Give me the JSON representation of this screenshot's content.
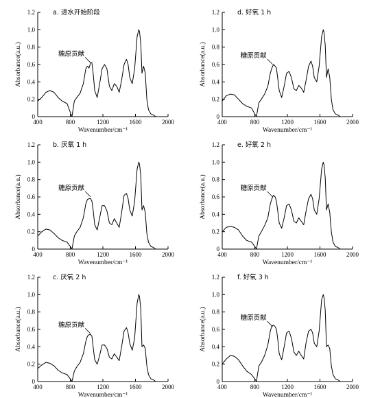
{
  "chart_data": [
    {
      "type": "line",
      "title": "a. 进水开始阶段",
      "xlabel": "Wavenumber/cm⁻¹",
      "ylabel": "Absorbance(a.u.)",
      "xlim": [
        400,
        2000
      ],
      "ylim": [
        0,
        1.2
      ],
      "xticks": [
        "400",
        "800",
        "1200",
        "1600",
        "2000"
      ],
      "yticks": [
        "0",
        "0.2",
        "0.4",
        "0.6",
        "0.8",
        "1.0",
        "1.2"
      ],
      "grid": false,
      "annotation": {
        "text": "糖原贡献",
        "x": 1050,
        "y": 0.62
      },
      "series": [
        {
          "x": [
            400,
            450,
            500,
            550,
            600,
            650,
            700,
            760,
            800,
            820,
            850,
            880,
            920,
            960,
            990,
            1010,
            1030,
            1050,
            1065,
            1080,
            1100,
            1130,
            1160,
            1190,
            1220,
            1250,
            1280,
            1310,
            1340,
            1370,
            1400,
            1430,
            1460,
            1490,
            1510,
            1530,
            1560,
            1590,
            1620,
            1640,
            1650,
            1665,
            1680,
            1700,
            1720,
            1740,
            1760,
            1790,
            1820,
            1850,
            1900,
            1950,
            2000
          ],
          "y": [
            0.18,
            0.22,
            0.28,
            0.3,
            0.28,
            0.22,
            0.18,
            0.15,
            0.05,
            0.0,
            0.18,
            0.22,
            0.27,
            0.38,
            0.55,
            0.58,
            0.56,
            0.62,
            0.62,
            0.5,
            0.3,
            0.22,
            0.38,
            0.55,
            0.6,
            0.55,
            0.35,
            0.3,
            0.38,
            0.35,
            0.28,
            0.42,
            0.6,
            0.66,
            0.6,
            0.45,
            0.38,
            0.55,
            0.92,
            1.0,
            0.98,
            0.85,
            0.5,
            0.58,
            0.5,
            0.2,
            0.08,
            0.03,
            0.02,
            0.0,
            0.0,
            0.0,
            0.0
          ]
        }
      ]
    },
    {
      "type": "line",
      "title": "d. 好氧 1 h",
      "xlabel": "Wavenumber/cm⁻¹",
      "ylabel": "Absorbance(a.u.)",
      "xlim": [
        400,
        2000
      ],
      "ylim": [
        0,
        1.2
      ],
      "xticks": [
        "400",
        "800",
        "1200",
        "1600",
        "2000"
      ],
      "yticks": [
        "0",
        "0.2",
        "0.4",
        "0.6",
        "0.8",
        "1.0",
        "1.2"
      ],
      "grid": false,
      "annotation": {
        "text": "糖原贡献",
        "x": 1020,
        "y": 0.6
      },
      "series": [
        {
          "x": [
            400,
            450,
            500,
            550,
            600,
            650,
            700,
            760,
            800,
            820,
            850,
            880,
            920,
            960,
            990,
            1010,
            1030,
            1050,
            1065,
            1080,
            1100,
            1130,
            1160,
            1190,
            1220,
            1250,
            1280,
            1310,
            1340,
            1370,
            1400,
            1430,
            1460,
            1490,
            1510,
            1530,
            1560,
            1590,
            1620,
            1640,
            1650,
            1665,
            1680,
            1700,
            1720,
            1740,
            1760,
            1790,
            1820,
            1850,
            1900,
            1950,
            2000
          ],
          "y": [
            0.18,
            0.24,
            0.26,
            0.25,
            0.2,
            0.15,
            0.12,
            0.1,
            0.03,
            0.0,
            0.16,
            0.2,
            0.26,
            0.35,
            0.5,
            0.56,
            0.6,
            0.58,
            0.56,
            0.45,
            0.3,
            0.22,
            0.35,
            0.5,
            0.52,
            0.45,
            0.32,
            0.3,
            0.36,
            0.33,
            0.28,
            0.42,
            0.58,
            0.64,
            0.58,
            0.45,
            0.4,
            0.58,
            0.92,
            1.0,
            0.97,
            0.82,
            0.45,
            0.55,
            0.45,
            0.2,
            0.08,
            0.03,
            0.02,
            0.0,
            0.0,
            0.0,
            0.0
          ]
        }
      ]
    },
    {
      "type": "line",
      "title": "b. 厌氧 1 h",
      "xlabel": "Wavenumber/cm⁻¹",
      "ylabel": "Absorbance(a.u.)",
      "xlim": [
        400,
        2000
      ],
      "ylim": [
        0,
        1.2
      ],
      "xticks": [
        "400",
        "800",
        "1200",
        "1600",
        "2000"
      ],
      "yticks": [
        "0",
        "0.2",
        "0.4",
        "0.6",
        "0.8",
        "1.0",
        "1.2"
      ],
      "grid": false,
      "annotation": {
        "text": "糖原贡献",
        "x": 1050,
        "y": 0.6
      },
      "series": [
        {
          "x": [
            400,
            450,
            500,
            550,
            600,
            650,
            700,
            760,
            800,
            820,
            850,
            880,
            920,
            960,
            990,
            1010,
            1030,
            1050,
            1065,
            1080,
            1100,
            1130,
            1160,
            1190,
            1220,
            1250,
            1280,
            1310,
            1340,
            1370,
            1400,
            1430,
            1460,
            1490,
            1510,
            1530,
            1560,
            1590,
            1620,
            1640,
            1650,
            1665,
            1680,
            1700,
            1720,
            1740,
            1760,
            1790,
            1820,
            1850,
            1900,
            1950,
            2000
          ],
          "y": [
            0.15,
            0.2,
            0.23,
            0.22,
            0.18,
            0.13,
            0.1,
            0.08,
            0.03,
            0.0,
            0.15,
            0.2,
            0.25,
            0.36,
            0.52,
            0.57,
            0.58,
            0.58,
            0.55,
            0.45,
            0.28,
            0.22,
            0.36,
            0.5,
            0.5,
            0.44,
            0.3,
            0.28,
            0.35,
            0.3,
            0.25,
            0.42,
            0.62,
            0.64,
            0.58,
            0.45,
            0.38,
            0.55,
            0.92,
            1.0,
            0.98,
            0.85,
            0.45,
            0.5,
            0.42,
            0.18,
            0.08,
            0.03,
            0.02,
            0.0,
            0.0,
            0.0,
            0.0
          ]
        }
      ]
    },
    {
      "type": "line",
      "title": "e. 好氧 2 h",
      "xlabel": "Wavenumber/cm⁻¹",
      "ylabel": "Absorbance(a.u.)",
      "xlim": [
        400,
        2000
      ],
      "ylim": [
        0,
        1.2
      ],
      "xticks": [
        "400",
        "800",
        "1200",
        "1600",
        "2000"
      ],
      "yticks": [
        "0",
        "0.2",
        "0.4",
        "0.6",
        "0.8",
        "1.0",
        "1.2"
      ],
      "grid": false,
      "annotation": {
        "text": "糖原贡献",
        "x": 1020,
        "y": 0.6
      },
      "series": [
        {
          "x": [
            400,
            450,
            500,
            550,
            600,
            650,
            700,
            760,
            800,
            820,
            850,
            880,
            920,
            960,
            990,
            1010,
            1030,
            1050,
            1065,
            1080,
            1100,
            1130,
            1160,
            1190,
            1220,
            1250,
            1280,
            1310,
            1340,
            1370,
            1400,
            1430,
            1460,
            1490,
            1510,
            1530,
            1560,
            1590,
            1620,
            1640,
            1650,
            1665,
            1680,
            1700,
            1720,
            1740,
            1760,
            1790,
            1820,
            1850,
            1900,
            1950,
            2000
          ],
          "y": [
            0.2,
            0.25,
            0.26,
            0.25,
            0.22,
            0.15,
            0.1,
            0.08,
            0.03,
            0.0,
            0.15,
            0.2,
            0.27,
            0.36,
            0.52,
            0.58,
            0.62,
            0.6,
            0.55,
            0.45,
            0.3,
            0.24,
            0.36,
            0.5,
            0.52,
            0.45,
            0.32,
            0.3,
            0.36,
            0.32,
            0.28,
            0.44,
            0.58,
            0.63,
            0.58,
            0.45,
            0.4,
            0.58,
            0.92,
            1.0,
            0.97,
            0.82,
            0.45,
            0.52,
            0.42,
            0.2,
            0.08,
            0.03,
            0.02,
            0.0,
            0.0,
            0.0,
            0.0
          ]
        }
      ]
    },
    {
      "type": "line",
      "title": "c. 厌氧 2 h",
      "xlabel": "Wavenumber/cm⁻¹",
      "ylabel": "Absorbance(a.u.)",
      "xlim": [
        400,
        2000
      ],
      "ylim": [
        0,
        1.2
      ],
      "xticks": [
        "400",
        "800",
        "1200",
        "1600",
        "2000"
      ],
      "yticks": [
        "0",
        "0.2",
        "0.4",
        "0.6",
        "0.8",
        "1.0",
        "1.2"
      ],
      "grid": false,
      "annotation": {
        "text": "糖原贡献",
        "x": 1050,
        "y": 0.55
      },
      "series": [
        {
          "x": [
            400,
            450,
            500,
            550,
            600,
            650,
            700,
            760,
            800,
            820,
            850,
            880,
            920,
            960,
            990,
            1010,
            1030,
            1050,
            1065,
            1080,
            1100,
            1130,
            1160,
            1190,
            1220,
            1250,
            1280,
            1310,
            1340,
            1370,
            1400,
            1430,
            1460,
            1490,
            1510,
            1530,
            1560,
            1590,
            1620,
            1640,
            1650,
            1665,
            1680,
            1700,
            1720,
            1740,
            1760,
            1790,
            1820,
            1850,
            1900,
            1950,
            2000
          ],
          "y": [
            0.15,
            0.19,
            0.22,
            0.21,
            0.18,
            0.13,
            0.1,
            0.08,
            0.03,
            0.0,
            0.12,
            0.17,
            0.22,
            0.32,
            0.46,
            0.52,
            0.54,
            0.54,
            0.52,
            0.4,
            0.25,
            0.2,
            0.3,
            0.42,
            0.42,
            0.38,
            0.28,
            0.26,
            0.32,
            0.28,
            0.24,
            0.4,
            0.58,
            0.62,
            0.56,
            0.44,
            0.36,
            0.5,
            0.9,
            1.0,
            0.98,
            0.84,
            0.4,
            0.42,
            0.38,
            0.18,
            0.08,
            0.03,
            0.02,
            0.0,
            0.0,
            0.0,
            0.0
          ]
        }
      ]
    },
    {
      "type": "line",
      "title": "f. 好氧 3 h",
      "xlabel": "Wavenumber/cm⁻¹",
      "ylabel": "Absorbance(a.u.)",
      "xlim": [
        400,
        2000
      ],
      "ylim": [
        0,
        1.2
      ],
      "xticks": [
        "400",
        "800",
        "1200",
        "1600",
        "2000"
      ],
      "yticks": [
        "0",
        "0.2",
        "0.4",
        "0.6",
        "0.8",
        "1.0",
        "1.2"
      ],
      "grid": false,
      "annotation": {
        "text": "糖原贡献",
        "x": 1020,
        "y": 0.63
      },
      "series": [
        {
          "x": [
            400,
            450,
            500,
            550,
            600,
            650,
            700,
            760,
            800,
            820,
            850,
            880,
            920,
            960,
            990,
            1010,
            1030,
            1050,
            1065,
            1080,
            1100,
            1130,
            1160,
            1190,
            1220,
            1250,
            1280,
            1310,
            1340,
            1370,
            1400,
            1430,
            1460,
            1490,
            1510,
            1530,
            1560,
            1590,
            1620,
            1640,
            1650,
            1665,
            1680,
            1700,
            1720,
            1740,
            1760,
            1790,
            1820,
            1850,
            1900,
            1950,
            2000
          ],
          "y": [
            0.2,
            0.26,
            0.3,
            0.29,
            0.25,
            0.18,
            0.12,
            0.08,
            0.03,
            0.0,
            0.18,
            0.22,
            0.3,
            0.42,
            0.58,
            0.64,
            0.65,
            0.63,
            0.6,
            0.5,
            0.32,
            0.25,
            0.4,
            0.56,
            0.58,
            0.5,
            0.34,
            0.3,
            0.35,
            0.3,
            0.26,
            0.45,
            0.58,
            0.6,
            0.56,
            0.44,
            0.4,
            0.58,
            0.94,
            1.0,
            0.97,
            0.82,
            0.4,
            0.42,
            0.38,
            0.18,
            0.08,
            0.03,
            0.02,
            0.0,
            0.0,
            0.0,
            0.0
          ]
        }
      ]
    }
  ]
}
